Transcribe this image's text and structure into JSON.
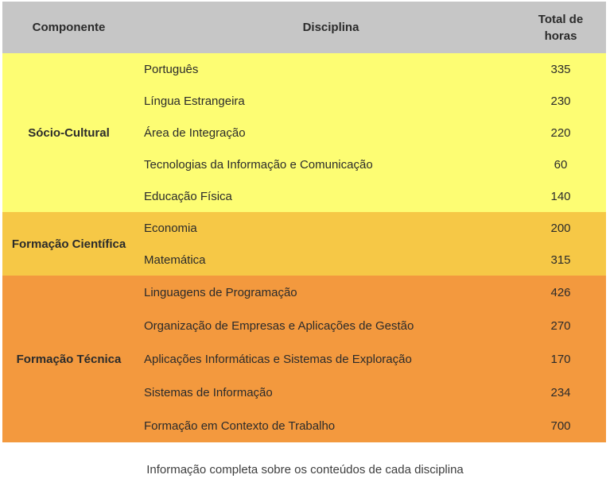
{
  "colors": {
    "header-bg": "#c6c6c6",
    "sociocultural-bg": "#fdfd73",
    "cientifica-bg": "#f6c846",
    "tecnica-bg": "#f3993e",
    "text": "#2b2b2b",
    "caption": "#3d3d3d"
  },
  "table": {
    "headers": {
      "component": "Componente",
      "discipline": "Disciplina",
      "total": "Total de horas"
    },
    "sections": [
      {
        "component": "Sócio-Cultural",
        "rows": [
          {
            "discipline": "Português",
            "hours": "335"
          },
          {
            "discipline": "Língua Estrangeira",
            "hours": "230"
          },
          {
            "discipline": "Área de Integração",
            "hours": "220"
          },
          {
            "discipline": "Tecnologias da Informação e Comunicação",
            "hours": "60"
          },
          {
            "discipline": "Educação Física",
            "hours": "140"
          }
        ]
      },
      {
        "component": "Formação Científica",
        "rows": [
          {
            "discipline": "Economia",
            "hours": "200"
          },
          {
            "discipline": "Matemática",
            "hours": "315"
          }
        ]
      },
      {
        "component": "Formação Técnica",
        "rows": [
          {
            "discipline": "Linguagens de Programação",
            "hours": "426"
          },
          {
            "discipline": "Organização de Empresas e Aplicações de Gestão",
            "hours": "270"
          },
          {
            "discipline": "Aplicações Informáticas e Sistemas de Exploração",
            "hours": "170"
          },
          {
            "discipline": "Sistemas de Informação",
            "hours": "234"
          },
          {
            "discipline": "Formação em Contexto de Trabalho",
            "hours": "700"
          }
        ]
      }
    ]
  },
  "footer": {
    "caption": "Informação completa sobre os conteúdos de cada disciplina"
  }
}
